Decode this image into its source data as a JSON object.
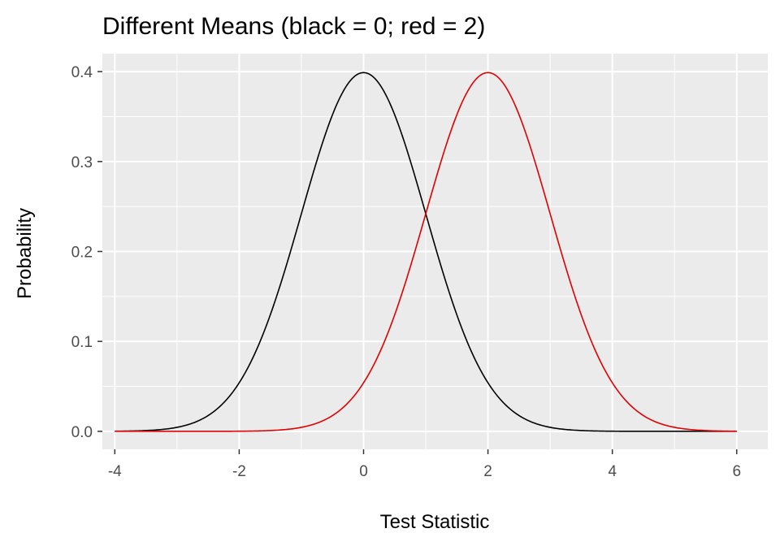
{
  "chart_data": {
    "type": "line",
    "title": "Different Means (black = 0; red = 2)",
    "xlabel": "Test Statistic",
    "ylabel": "Probability",
    "xlim": [
      -4.2,
      6.5
    ],
    "ylim": [
      -0.02,
      0.42
    ],
    "x_ticks": [
      -4,
      -2,
      0,
      2,
      4,
      6
    ],
    "x_tick_labels": [
      "-4",
      "-2",
      "0",
      "2",
      "4",
      "6"
    ],
    "y_ticks": [
      0.0,
      0.1,
      0.2,
      0.3,
      0.4
    ],
    "y_tick_labels": [
      "0.0",
      "0.1",
      "0.2",
      "0.3",
      "0.4"
    ],
    "grid": true,
    "panel_background": "#ebebeb",
    "grid_color": "#ffffff",
    "x": [
      -4,
      -3.5,
      -3,
      -2.5,
      -2,
      -1.5,
      -1,
      -0.5,
      0,
      0.5,
      1,
      1.5,
      2,
      2.5,
      3,
      3.5,
      4,
      4.5,
      5,
      5.5,
      6
    ],
    "series": [
      {
        "color": "#000000",
        "mean": 0,
        "values": [
          0.0001,
          0.0009,
          0.0044,
          0.0175,
          0.054,
          0.1295,
          0.242,
          0.3521,
          0.3989,
          0.3521,
          0.242,
          0.1295,
          0.054,
          0.0175,
          0.0044,
          0.0009,
          0.0001,
          0.0,
          0.0,
          0.0,
          0.0
        ]
      },
      {
        "color": "#e00000",
        "mean": 2,
        "values": [
          0.0,
          0.0,
          0.0,
          0.0,
          0.0001,
          0.0009,
          0.0044,
          0.0175,
          0.054,
          0.1295,
          0.242,
          0.3521,
          0.3989,
          0.3521,
          0.242,
          0.1295,
          0.054,
          0.0175,
          0.0044,
          0.0009,
          0.0001
        ]
      }
    ]
  }
}
